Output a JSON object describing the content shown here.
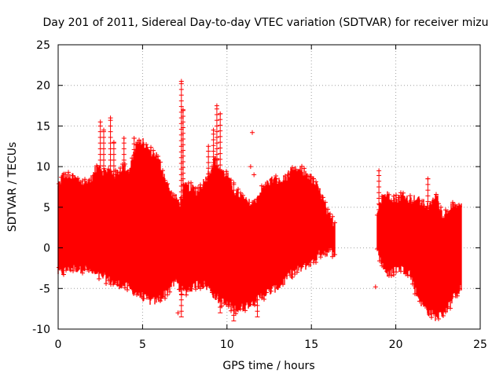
{
  "chart_data": {
    "type": "scatter",
    "title": "Day 201 of 2011, Sidereal Day-to-day VTEC variation (SDTVAR) for receiver mizu",
    "xlabel": "GPS time / hours",
    "ylabel": "SDTVAR / TECUs",
    "xlim": [
      0,
      25
    ],
    "ylim": [
      -10,
      25
    ],
    "xticks": [
      0,
      5,
      10,
      15,
      20,
      25
    ],
    "yticks": [
      -10,
      -5,
      0,
      5,
      10,
      15,
      20,
      25
    ],
    "xtick_labels": [
      "0",
      "5",
      "10",
      "15",
      "20",
      "25"
    ],
    "ytick_labels": [
      "-10",
      "-5",
      "0",
      "5",
      "10",
      "15",
      "20",
      "25"
    ],
    "grid": true,
    "marker": "+",
    "color": "#ff0000",
    "series": [
      {
        "name": "SDTVAR",
        "envelope": {
          "x": [
            0.0,
            0.3,
            0.6,
            1.0,
            1.5,
            2.0,
            2.4,
            2.6,
            3.0,
            3.4,
            3.8,
            4.2,
            4.6,
            5.0,
            5.4,
            5.8,
            6.2,
            6.6,
            7.0,
            7.2,
            7.5,
            7.8,
            8.2,
            8.6,
            9.0,
            9.3,
            9.6,
            10.0,
            10.4,
            10.8,
            11.2,
            11.6,
            12.0,
            12.4,
            12.8,
            13.2,
            13.6,
            14.0,
            14.4,
            14.8,
            15.2,
            15.6,
            16.0,
            16.4
          ],
          "upper": [
            7.5,
            9.0,
            8.8,
            8.5,
            8.0,
            8.5,
            10.5,
            9.5,
            9.5,
            9.0,
            10.0,
            9.5,
            12.5,
            13.0,
            12.0,
            11.5,
            9.5,
            7.0,
            6.0,
            5.5,
            7.5,
            7.5,
            7.0,
            8.0,
            9.5,
            11.0,
            9.5,
            9.0,
            7.0,
            6.5,
            5.5,
            5.5,
            7.0,
            8.0,
            8.5,
            8.0,
            9.0,
            9.5,
            9.5,
            9.0,
            8.0,
            6.5,
            4.0,
            3.0
          ],
          "lower": [
            -3.0,
            -3.0,
            -2.5,
            -2.5,
            -2.5,
            -3.0,
            -3.5,
            -3.5,
            -4.0,
            -4.5,
            -4.5,
            -5.0,
            -5.5,
            -6.0,
            -6.5,
            -6.5,
            -6.0,
            -5.0,
            -4.0,
            -5.0,
            -5.5,
            -5.0,
            -4.5,
            -4.5,
            -5.0,
            -6.0,
            -6.5,
            -7.0,
            -7.5,
            -7.5,
            -7.0,
            -6.5,
            -6.0,
            -5.5,
            -5.0,
            -4.5,
            -3.5,
            -3.0,
            -2.5,
            -2.0,
            -1.5,
            -0.5,
            -0.5,
            -0.5
          ]
        },
        "envelope2": {
          "x": [
            18.9,
            19.2,
            19.6,
            20.0,
            20.4,
            20.8,
            21.2,
            21.6,
            22.0,
            22.4,
            22.8,
            23.2,
            23.6,
            23.9
          ],
          "upper": [
            4.5,
            6.5,
            6.5,
            6.0,
            6.5,
            6.0,
            6.0,
            5.5,
            5.0,
            6.5,
            4.0,
            5.0,
            5.0,
            5.0
          ],
          "lower": [
            -0.5,
            -2.0,
            -3.5,
            -2.5,
            -2.5,
            -3.0,
            -5.5,
            -7.0,
            -8.0,
            -8.5,
            -8.0,
            -7.0,
            -5.5,
            -5.0
          ]
        },
        "spikes": [
          {
            "x": 2.5,
            "low": 8.0,
            "high": 15.5
          },
          {
            "x": 2.7,
            "low": 8.0,
            "high": 14.5
          },
          {
            "x": 3.1,
            "low": 8.0,
            "high": 16.0
          },
          {
            "x": 3.3,
            "low": 8.0,
            "high": 13.0
          },
          {
            "x": 3.9,
            "low": 8.0,
            "high": 13.5
          },
          {
            "x": 4.5,
            "low": 10.0,
            "high": 13.5
          },
          {
            "x": 4.7,
            "low": 10.0,
            "high": 13.0
          },
          {
            "x": 7.3,
            "low": -8.5,
            "high": 20.5
          },
          {
            "x": 7.4,
            "low": 5.0,
            "high": 17.0
          },
          {
            "x": 8.9,
            "low": 7.0,
            "high": 12.5
          },
          {
            "x": 9.2,
            "low": 7.0,
            "high": 14.5
          },
          {
            "x": 9.4,
            "low": 8.0,
            "high": 17.5
          },
          {
            "x": 9.6,
            "low": -8.0,
            "high": 16.5
          },
          {
            "x": 10.1,
            "low": -7.0,
            "high": 8.0
          },
          {
            "x": 10.4,
            "low": -9.0,
            "high": 8.0
          },
          {
            "x": 11.8,
            "low": -8.5,
            "high": 6.0
          },
          {
            "x": 12.3,
            "low": -5.5,
            "high": 7.5
          },
          {
            "x": 12.9,
            "low": -4.5,
            "high": 8.5
          },
          {
            "x": 19.0,
            "low": 4.0,
            "high": 9.5
          },
          {
            "x": 21.9,
            "low": 5.0,
            "high": 8.5
          }
        ],
        "outliers": [
          {
            "x": 11.4,
            "y": 10.0
          },
          {
            "x": 11.5,
            "y": 14.2
          },
          {
            "x": 11.6,
            "y": 9.0
          },
          {
            "x": 9.6,
            "y": -6.5
          },
          {
            "x": 18.8,
            "y": -4.8
          },
          {
            "x": 7.1,
            "y": -8.0
          }
        ]
      }
    ]
  }
}
